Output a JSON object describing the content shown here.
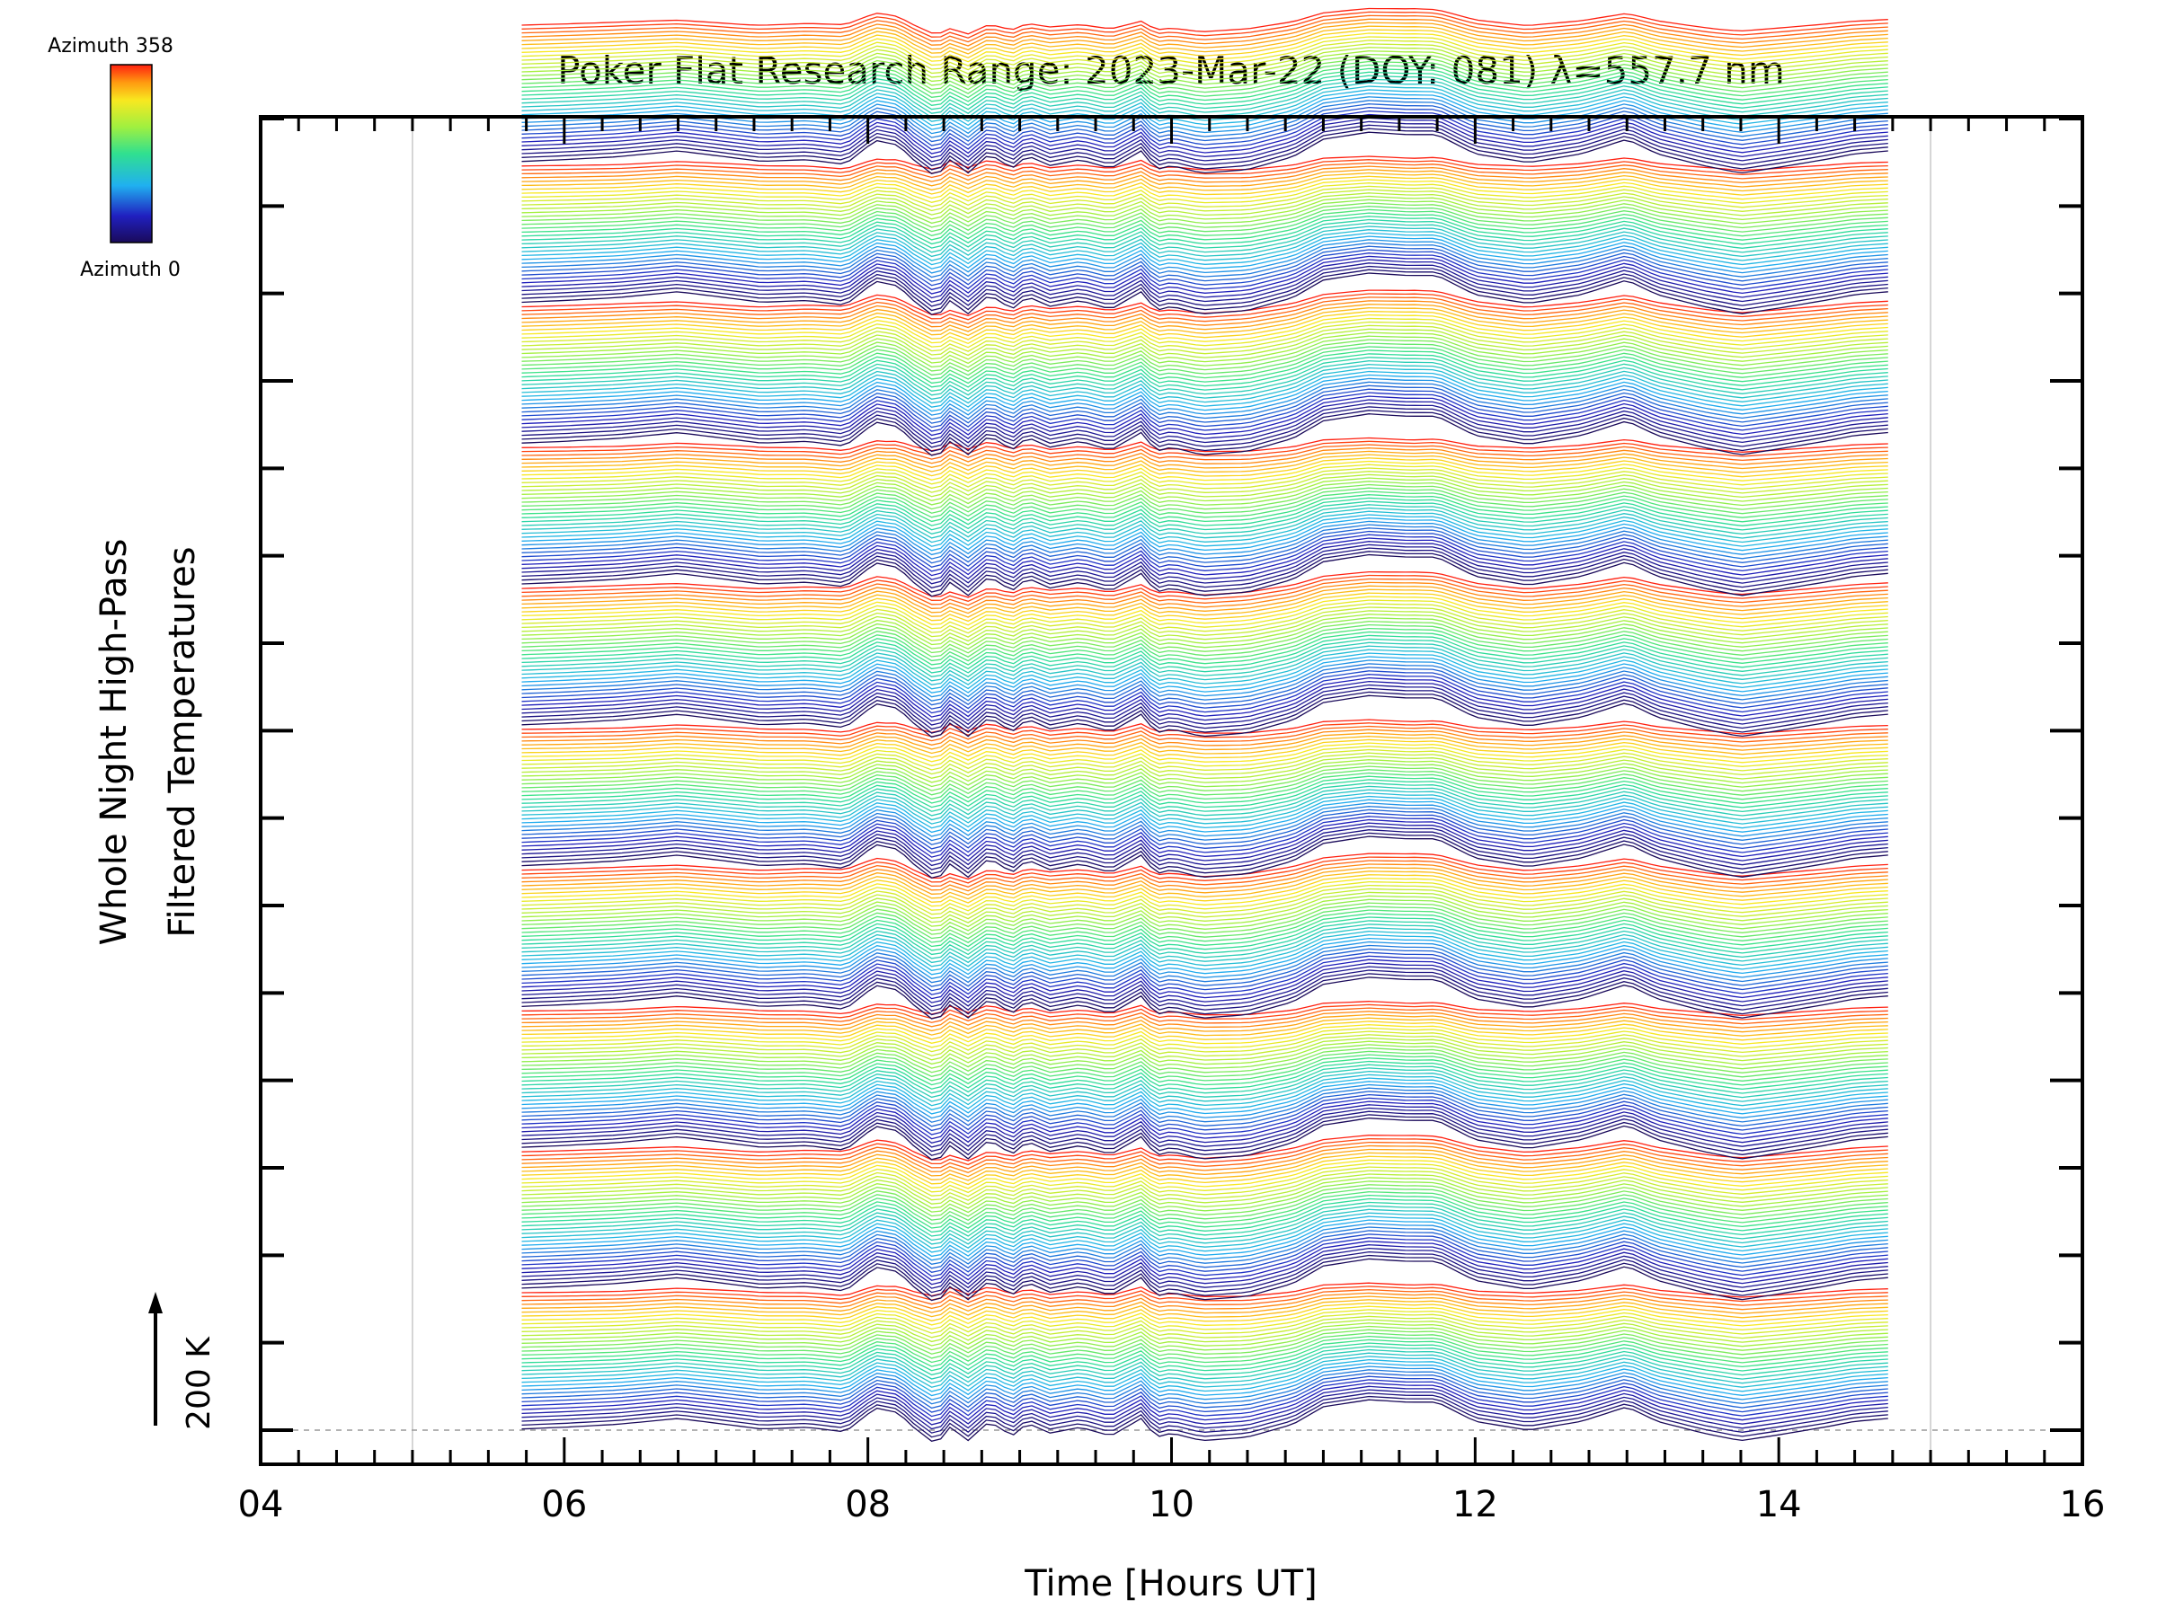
{
  "chart_data": {
    "type": "line",
    "title": "Poker Flat Research Range: 2023-Mar-22 (DOY: 081) λ=557.7 nm",
    "xlabel": "Time [Hours UT]",
    "ylabel_lines": [
      "Whole Night High-Pass",
      "Filtered Temperatures"
    ],
    "x_tick_labels": [
      "04",
      "06",
      "08",
      "10",
      "12",
      "14",
      "16"
    ],
    "xlim": [
      4,
      16
    ],
    "y_ticks_count": 16,
    "grid_hours": [
      5,
      15
    ],
    "scale_bar": {
      "label": "200 K",
      "value_K": 200
    },
    "colorbar": {
      "top_label": "Azimuth 358",
      "bottom_label": "Azimuth 0",
      "min": 0,
      "max": 358,
      "colormap": "rainbow"
    },
    "data_range_hours": [
      5.72,
      14.72
    ],
    "n_traces": 360,
    "trace_offset_K": 6.7,
    "base_profile": {
      "x": [
        5.72,
        6.0,
        6.35,
        6.75,
        7.0,
        7.3,
        7.6,
        7.85,
        8.05,
        8.2,
        8.3,
        8.45,
        8.55,
        8.65,
        8.8,
        8.95,
        9.05,
        9.2,
        9.4,
        9.6,
        9.8,
        9.9,
        10.0,
        10.2,
        10.5,
        10.8,
        11.0,
        11.3,
        11.55,
        11.75,
        12.0,
        12.35,
        12.7,
        13.0,
        13.2,
        13.5,
        13.75,
        14.0,
        14.3,
        14.5,
        14.72
      ],
      "y": [
        2,
        5,
        10,
        20,
        12,
        2,
        5,
        -3,
        38,
        30,
        5,
        -25,
        8,
        -20,
        15,
        -10,
        12,
        -5,
        5,
        -10,
        20,
        -12,
        -5,
        -18,
        -12,
        10,
        40,
        52,
        48,
        48,
        15,
        0,
        15,
        40,
        15,
        -5,
        -18,
        -8,
        5,
        15,
        20
      ]
    },
    "group_profile": {
      "x": [
        5.72,
        6.4,
        7.2,
        8.1,
        8.55,
        9.2,
        10.2,
        11.2,
        11.6,
        12.3,
        13.0,
        13.6,
        14.2,
        14.72
      ],
      "y": [
        0,
        5,
        -3,
        15,
        -25,
        0,
        -8,
        18,
        25,
        0,
        10,
        -5,
        0,
        5
      ]
    },
    "colors": {
      "background": "#ffffff",
      "axis": "#000000",
      "grid": "#c8c8c8",
      "dashed_baseline": "#999999"
    }
  }
}
